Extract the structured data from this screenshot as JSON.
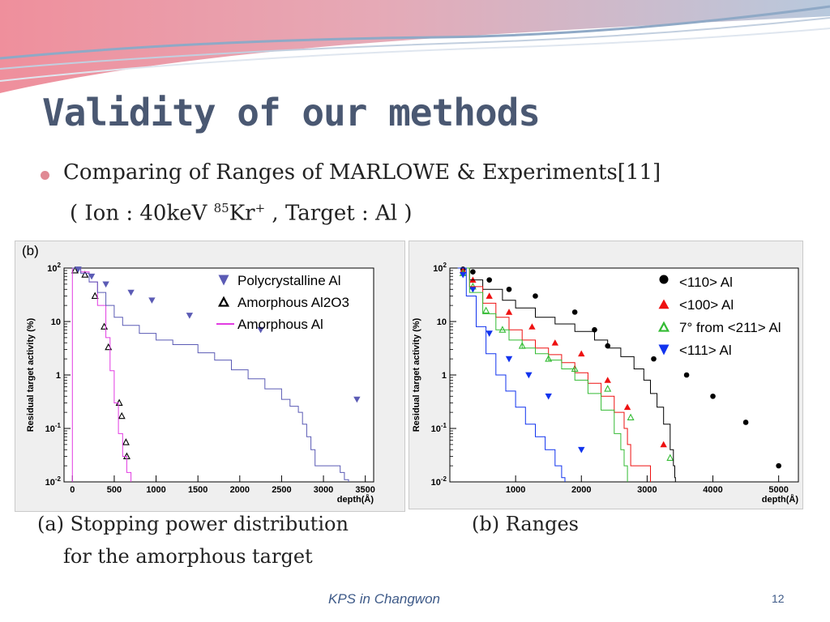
{
  "slide": {
    "title": "Validity of our methods",
    "bullet": "Comparing of Ranges of MARLOWE & Experiments[11]",
    "bullet_sub_pre": "( Ion : 40keV ",
    "bullet_sub_sup1": "85",
    "bullet_sub_mid": "Kr",
    "bullet_sub_sup2": "+",
    "bullet_sub_post": " , Target : Al )",
    "caption_a_line1": "(a) Stopping power distribution",
    "caption_a_line2": "for the amorphous target",
    "caption_b": "(b) Ranges",
    "footer": "KPS in Changwon",
    "page_number": "12",
    "colors": {
      "title": "#4a5872",
      "bullet": "#e08a94",
      "footer": "#3e5a88"
    }
  },
  "chart_data": [
    {
      "type": "scatter",
      "panel_label": "(b)",
      "xlabel": "depth(Å)",
      "ylabel": "Residual target activity (%)",
      "xlim": [
        -100,
        3600
      ],
      "ylim": [
        0.01,
        100
      ],
      "yscale": "log",
      "xticks": [
        0,
        500,
        1000,
        1500,
        2000,
        2500,
        3000,
        3500
      ],
      "yticks": [
        100,
        10,
        1,
        0.1,
        0.01
      ],
      "ytick_labels": [
        [
          "10",
          "2"
        ],
        [
          "10",
          ""
        ],
        [
          "1",
          ""
        ],
        [
          "10",
          "-1"
        ],
        [
          "10",
          "-2"
        ]
      ],
      "legend_position": "top-right",
      "series": [
        {
          "name": "Polycrystalline Al",
          "kind": "points",
          "marker": "triangle-down-filled",
          "color": "#5b5bb5",
          "x": [
            70,
            230,
            400,
            700,
            950,
            1400,
            2250,
            3400
          ],
          "y": [
            95,
            70,
            50,
            35,
            25,
            13,
            7,
            0.35
          ]
        },
        {
          "name": "Amorphous Al2O3",
          "kind": "points",
          "marker": "triangle-up-open",
          "color": "#000000",
          "x": [
            30,
            150,
            270,
            380,
            430,
            560,
            590,
            640,
            650
          ],
          "y": [
            90,
            75,
            30,
            8,
            3.3,
            0.3,
            0.17,
            0.055,
            0.03
          ]
        },
        {
          "name": "Amorphous Al",
          "kind": "line",
          "color": "#e23be2",
          "x": [
            0,
            0,
            100,
            200,
            300,
            400,
            450,
            500,
            550,
            600,
            650,
            700,
            700
          ],
          "y": [
            0.01,
            100,
            85,
            55,
            20,
            5,
            1.2,
            0.3,
            0.08,
            0.03,
            0.015,
            0.011,
            0.01
          ]
        },
        {
          "name": "",
          "kind": "line",
          "color": "#5b5bb5",
          "x": [
            0,
            100,
            200,
            300,
            400,
            500,
            600,
            800,
            1000,
            1200,
            1500,
            1700,
            1900,
            2100,
            2300,
            2500,
            2600,
            2700,
            2750,
            2800,
            2850,
            2900,
            3100,
            3200,
            3250,
            3300
          ],
          "y": [
            100,
            80,
            55,
            35,
            20,
            12,
            8.5,
            6,
            4.5,
            3.7,
            2.6,
            1.9,
            1.25,
            0.85,
            0.55,
            0.35,
            0.26,
            0.2,
            0.12,
            0.07,
            0.04,
            0.02,
            0.02,
            0.015,
            0.011,
            0.01
          ]
        }
      ]
    },
    {
      "type": "scatter",
      "xlabel": "depth(Å)",
      "ylabel": "Residual target activity (%)",
      "xlim": [
        0,
        5300
      ],
      "ylim": [
        0.01,
        100
      ],
      "yscale": "log",
      "xticks": [
        1000,
        2000,
        3000,
        4000,
        5000
      ],
      "yticks": [
        100,
        10,
        1,
        0.1,
        0.01
      ],
      "ytick_labels": [
        [
          "10",
          "2"
        ],
        [
          "10",
          ""
        ],
        [
          "1",
          ""
        ],
        [
          "10",
          "-1"
        ],
        [
          "10",
          "-2"
        ]
      ],
      "legend_position": "top-right",
      "series": [
        {
          "name": "<110> Al",
          "kind": "points",
          "marker": "circle-filled",
          "color": "#000000",
          "x": [
            200,
            350,
            600,
            900,
            1300,
            1900,
            2200,
            2400,
            3100,
            3600,
            4000,
            4500,
            5000
          ],
          "y": [
            95,
            85,
            60,
            40,
            30,
            15,
            7,
            3.5,
            2,
            1,
            0.4,
            0.13,
            0.02
          ]
        },
        {
          "name": "<100> Al",
          "kind": "points",
          "marker": "triangle-up-filled",
          "color": "#ee1111",
          "x": [
            200,
            350,
            600,
            900,
            1250,
            1600,
            2000,
            2400,
            2700,
            3250
          ],
          "y": [
            90,
            60,
            30,
            15,
            8,
            4,
            2.5,
            0.8,
            0.25,
            0.05
          ]
        },
        {
          "name": "7° from <211> Al",
          "kind": "points",
          "marker": "triangle-up-open",
          "color": "#33bb33",
          "x": [
            200,
            350,
            550,
            800,
            1100,
            1500,
            1900,
            2400,
            2750,
            3350
          ],
          "y": [
            80,
            45,
            16,
            7,
            3.5,
            2,
            1.3,
            0.55,
            0.16,
            0.028
          ]
        },
        {
          "name": "<111> Al",
          "kind": "points",
          "marker": "triangle-down-filled",
          "color": "#1133ee",
          "x": [
            200,
            350,
            600,
            900,
            1200,
            1500,
            2000
          ],
          "y": [
            75,
            40,
            6,
            2,
            1,
            0.4,
            0.04
          ]
        },
        {
          "name": "",
          "kind": "line",
          "color": "#000000",
          "x": [
            120,
            300,
            500,
            800,
            1000,
            1300,
            1600,
            1900,
            2200,
            2400,
            2600,
            2800,
            2950,
            3050,
            3150,
            3250,
            3350,
            3400,
            3420,
            3430
          ],
          "y": [
            100,
            60,
            40,
            25,
            18,
            12,
            9,
            6.5,
            4.5,
            3.2,
            2.2,
            1.3,
            0.8,
            0.45,
            0.25,
            0.12,
            0.04,
            0.02,
            0.012,
            0.01
          ]
        },
        {
          "name": "",
          "kind": "line",
          "color": "#ee1111",
          "x": [
            120,
            300,
            500,
            700,
            900,
            1100,
            1300,
            1500,
            1700,
            1900,
            2100,
            2300,
            2500,
            2650,
            2700,
            2750,
            2800,
            3000,
            3050
          ],
          "y": [
            100,
            45,
            22,
            12,
            7,
            4.5,
            3.2,
            2.4,
            1.7,
            1.1,
            0.7,
            0.4,
            0.2,
            0.1,
            0.05,
            0.02,
            0.02,
            0.02,
            0.01
          ]
        },
        {
          "name": "",
          "kind": "line",
          "color": "#33bb33",
          "x": [
            120,
            300,
            500,
            700,
            900,
            1100,
            1300,
            1500,
            1700,
            1900,
            2100,
            2300,
            2500,
            2600,
            2650,
            2700
          ],
          "y": [
            100,
            35,
            14,
            7,
            4.5,
            3.2,
            2.5,
            1.9,
            1.3,
            0.8,
            0.45,
            0.22,
            0.08,
            0.04,
            0.02,
            0.01
          ]
        },
        {
          "name": "",
          "kind": "line",
          "color": "#1133ee",
          "x": [
            120,
            250,
            400,
            550,
            700,
            850,
            1000,
            1150,
            1300,
            1450,
            1600,
            1700,
            1750
          ],
          "y": [
            100,
            30,
            8,
            2.5,
            1,
            0.5,
            0.25,
            0.12,
            0.07,
            0.04,
            0.02,
            0.012,
            0.01
          ]
        }
      ]
    }
  ]
}
